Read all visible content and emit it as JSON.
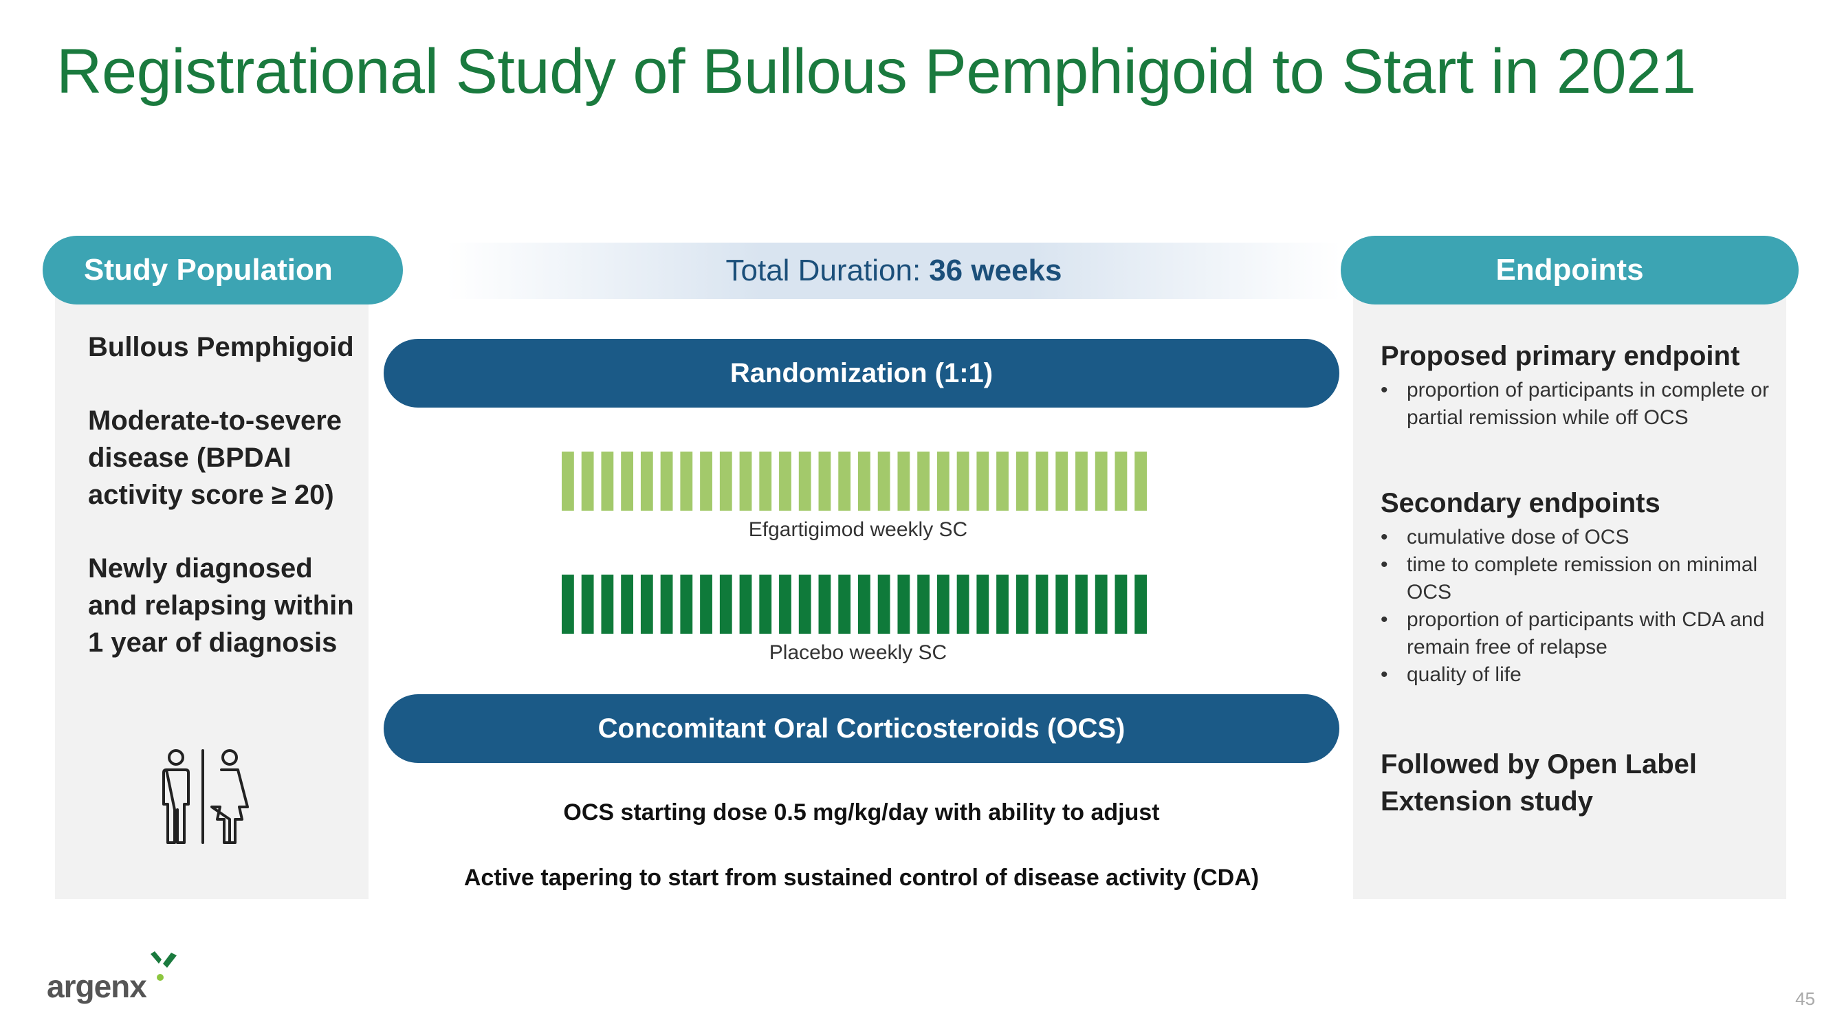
{
  "title": "Registrational Study of Bullous Pemphigoid to Start in 2021",
  "study_population": {
    "heading": "Study Population",
    "item1": "Bullous Pemphigoid",
    "item2": "Moderate-to-severe disease (BPDAI activity score ≥ 20)",
    "item3": "Newly diagnosed and relapsing within 1 year of diagnosis",
    "icon": "people-icon"
  },
  "center": {
    "duration_label": "Total Duration:",
    "duration_value": "36 weeks",
    "randomization": "Randomization (1:1)",
    "arm1_label": "Efgartigimod weekly SC",
    "arm2_label": "Placebo weekly SC",
    "arm1_doses": 30,
    "arm2_doses": 30,
    "arm1_color": "#a3c96b",
    "arm2_color": "#0f7a3a",
    "ocs": "Concomitant Oral Corticosteroids (OCS)",
    "note1": "OCS starting dose 0.5 mg/kg/day with ability to adjust",
    "note2": "Active tapering to start from sustained control of disease activity (CDA)"
  },
  "endpoints": {
    "heading": "Endpoints",
    "primary_heading": "Proposed primary endpoint",
    "primary_items": [
      "proportion of participants in complete or partial remission while off OCS"
    ],
    "secondary_heading": "Secondary endpoints",
    "secondary_items": [
      "cumulative dose of OCS",
      "time to complete remission on minimal OCS",
      "proportion of participants with CDA and remain free of relapse",
      "quality of life"
    ],
    "followup": "Followed by Open Label Extension study"
  },
  "footer": {
    "logo_text": "argenx",
    "page_number": "45"
  },
  "colors": {
    "title": "#1a7a3e",
    "teal": "#3ca4b3",
    "navy": "#1b5a87"
  }
}
